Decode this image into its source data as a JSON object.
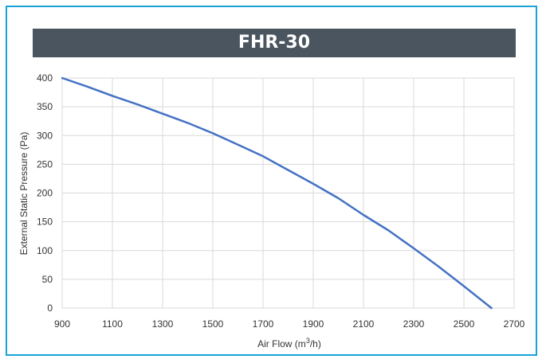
{
  "chart_data": {
    "type": "line",
    "title": "FHR-30",
    "xlabel": "Air Flow (m3/h)",
    "xlabel_main": "Air Flow (m",
    "xlabel_sup": "3",
    "xlabel_tail": "/h)",
    "ylabel": "External Static Pressure (Pa)",
    "xlim": [
      900,
      2700
    ],
    "ylim": [
      0,
      400
    ],
    "x_ticks": [
      900,
      1100,
      1300,
      1500,
      1700,
      1900,
      2100,
      2300,
      2500,
      2700
    ],
    "y_ticks": [
      0,
      50,
      100,
      150,
      200,
      250,
      300,
      350,
      400
    ],
    "grid": true,
    "line_color": "#4472c4",
    "series": [
      {
        "x": [
          900,
          1000,
          1100,
          1200,
          1300,
          1400,
          1500,
          1600,
          1700,
          1800,
          1900,
          2000,
          2100,
          2200,
          2300,
          2400,
          2500,
          2610
        ],
        "y": [
          400,
          385,
          369,
          354,
          338,
          322,
          304,
          284,
          264,
          240,
          216,
          191,
          162,
          135,
          104,
          72,
          38,
          0
        ]
      }
    ]
  }
}
